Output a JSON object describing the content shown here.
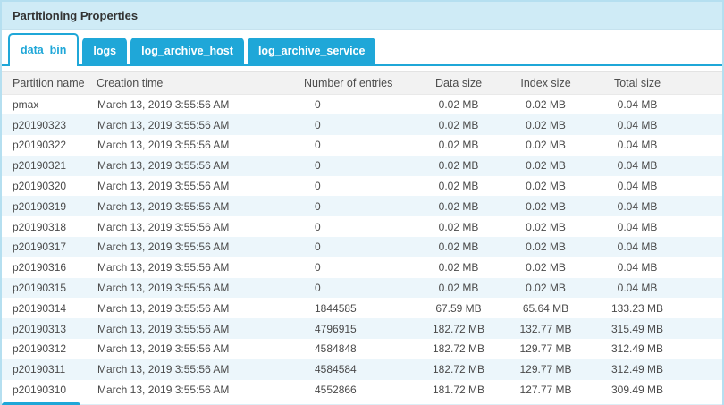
{
  "panel": {
    "title": "Partitioning Properties"
  },
  "tabs": [
    {
      "label": "data_bin",
      "active": true
    },
    {
      "label": "logs",
      "active": false
    },
    {
      "label": "log_archive_host",
      "active": false
    },
    {
      "label": "log_archive_service",
      "active": false
    }
  ],
  "table": {
    "columns": [
      "Partition name",
      "Creation time",
      "Number of entries",
      "Data size",
      "Index size",
      "Total size"
    ],
    "column_keys": [
      "partition-name",
      "creation-time",
      "entries",
      "data-size",
      "index-size",
      "total-size"
    ],
    "rows": [
      [
        "pmax",
        "March 13, 2019 3:55:56 AM",
        "0",
        "0.02 MB",
        "0.02 MB",
        "0.04 MB"
      ],
      [
        "p20190323",
        "March 13, 2019 3:55:56 AM",
        "0",
        "0.02 MB",
        "0.02 MB",
        "0.04 MB"
      ],
      [
        "p20190322",
        "March 13, 2019 3:55:56 AM",
        "0",
        "0.02 MB",
        "0.02 MB",
        "0.04 MB"
      ],
      [
        "p20190321",
        "March 13, 2019 3:55:56 AM",
        "0",
        "0.02 MB",
        "0.02 MB",
        "0.04 MB"
      ],
      [
        "p20190320",
        "March 13, 2019 3:55:56 AM",
        "0",
        "0.02 MB",
        "0.02 MB",
        "0.04 MB"
      ],
      [
        "p20190319",
        "March 13, 2019 3:55:56 AM",
        "0",
        "0.02 MB",
        "0.02 MB",
        "0.04 MB"
      ],
      [
        "p20190318",
        "March 13, 2019 3:55:56 AM",
        "0",
        "0.02 MB",
        "0.02 MB",
        "0.04 MB"
      ],
      [
        "p20190317",
        "March 13, 2019 3:55:56 AM",
        "0",
        "0.02 MB",
        "0.02 MB",
        "0.04 MB"
      ],
      [
        "p20190316",
        "March 13, 2019 3:55:56 AM",
        "0",
        "0.02 MB",
        "0.02 MB",
        "0.04 MB"
      ],
      [
        "p20190315",
        "March 13, 2019 3:55:56 AM",
        "0",
        "0.02 MB",
        "0.02 MB",
        "0.04 MB"
      ],
      [
        "p20190314",
        "March 13, 2019 3:55:56 AM",
        "1844585",
        "67.59 MB",
        "65.64 MB",
        "133.23 MB"
      ],
      [
        "p20190313",
        "March 13, 2019 3:55:56 AM",
        "4796915",
        "182.72 MB",
        "132.77 MB",
        "315.49 MB"
      ],
      [
        "p20190312",
        "March 13, 2019 3:55:56 AM",
        "4584848",
        "182.72 MB",
        "129.77 MB",
        "312.49 MB"
      ],
      [
        "p20190311",
        "March 13, 2019 3:55:56 AM",
        "4584584",
        "182.72 MB",
        "129.77 MB",
        "312.49 MB"
      ],
      [
        "p20190310",
        "March 13, 2019 3:55:56 AM",
        "4552866",
        "181.72 MB",
        "127.77 MB",
        "309.49 MB"
      ]
    ]
  },
  "colors": {
    "accent": "#1fa7d8",
    "panel_header_bg": "#cfebf6",
    "row_alt": "#ecf6fb",
    "outer_border": "#b5dff0"
  }
}
